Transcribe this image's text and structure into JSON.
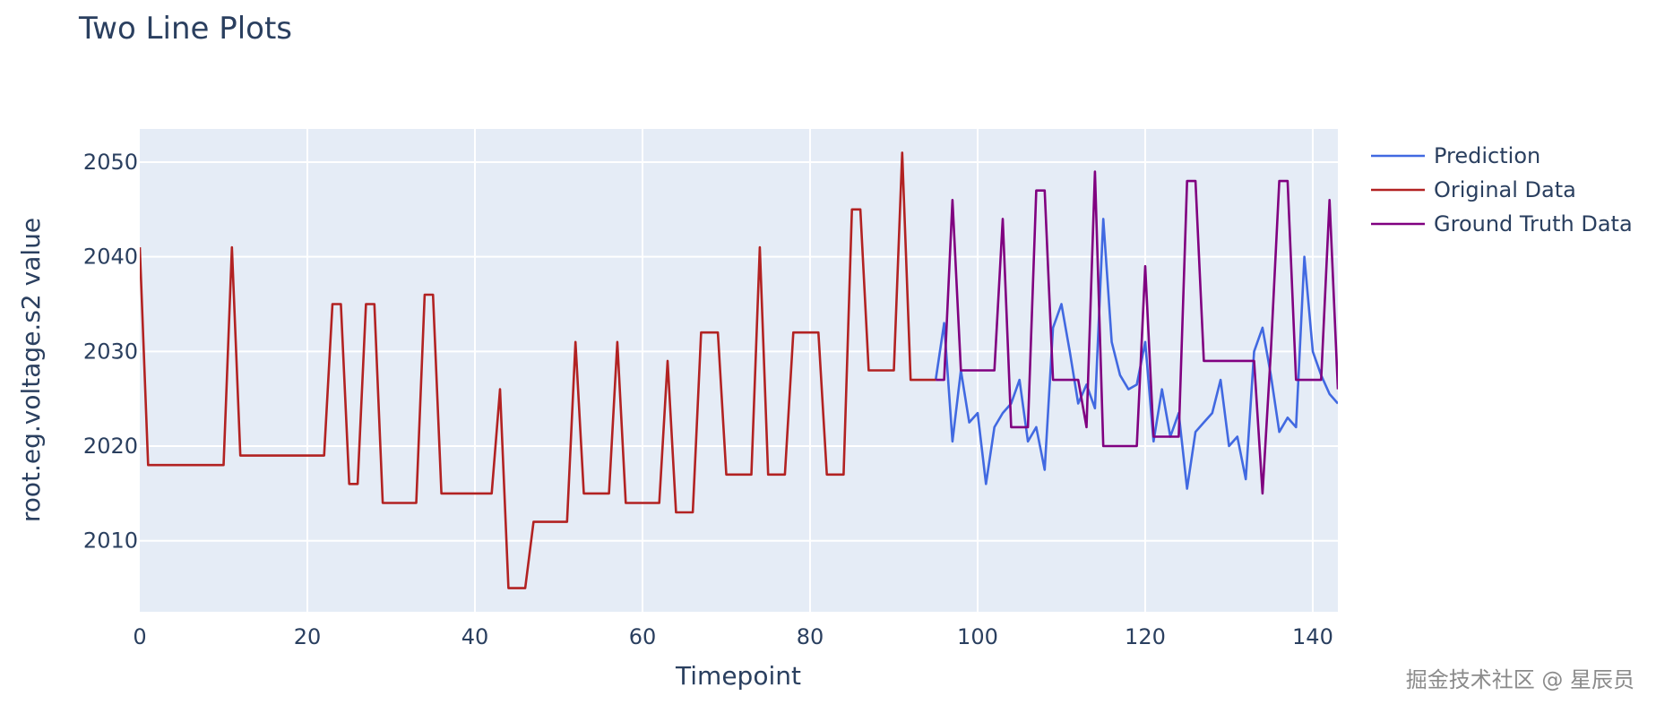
{
  "chart_data": {
    "type": "line",
    "title": "Two Line Plots",
    "xlabel": "Timepoint",
    "ylabel": "root.eg.voltage.s2 value",
    "xlim": [
      0,
      143
    ],
    "ylim": [
      2002.5,
      2053.5
    ],
    "xticks": [
      0,
      20,
      40,
      60,
      80,
      100,
      120,
      140
    ],
    "yticks": [
      2010,
      2020,
      2030,
      2040,
      2050
    ],
    "grid": true,
    "legend_position": "top-right",
    "series": [
      {
        "name": "Prediction",
        "color": "#4169e1",
        "x_start": 95,
        "values": [
          2027,
          2033,
          2020.5,
          2028,
          2022.5,
          2023.5,
          2016,
          2022,
          2023.5,
          2024.5,
          2027,
          2020.5,
          2022,
          2017.5,
          2032.5,
          2035,
          2030,
          2024.5,
          2026.5,
          2024,
          2044,
          2031,
          2027.5,
          2026,
          2026.5,
          2031,
          2020.5,
          2026,
          2021,
          2023.5,
          2015.5,
          2021.5,
          2022.5,
          2023.5,
          2027,
          2020,
          2021,
          2016.5,
          2030,
          2032.5,
          2027.5,
          2021.5,
          2023,
          2022,
          2040,
          2030,
          2027.5,
          2025.5,
          2024.5
        ]
      },
      {
        "name": "Original Data",
        "color": "#b22222",
        "x_start": 0,
        "values": [
          2041,
          2018,
          2018,
          2018,
          2018,
          2018,
          2018,
          2018,
          2018,
          2018,
          2018,
          2041,
          2019,
          2019,
          2019,
          2019,
          2019,
          2019,
          2019,
          2019,
          2019,
          2019,
          2019,
          2035,
          2035,
          2016,
          2016,
          2035,
          2035,
          2014,
          2014,
          2014,
          2014,
          2014,
          2036,
          2036,
          2015,
          2015,
          2015,
          2015,
          2015,
          2015,
          2015,
          2026,
          2005,
          2005,
          2005,
          2012,
          2012,
          2012,
          2012,
          2012,
          2031,
          2015,
          2015,
          2015,
          2015,
          2031,
          2014,
          2014,
          2014,
          2014,
          2014,
          2029,
          2013,
          2013,
          2013,
          2032,
          2032,
          2032,
          2017,
          2017,
          2017,
          2017,
          2041,
          2017,
          2017,
          2017,
          2032,
          2032,
          2032,
          2032,
          2017,
          2017,
          2017,
          2045,
          2045,
          2028,
          2028,
          2028,
          2028,
          2051,
          2027,
          2027,
          2027,
          2027
        ]
      },
      {
        "name": "Ground Truth Data",
        "color": "#800080",
        "x_start": 95,
        "values": [
          2027,
          2027,
          2046,
          2028,
          2028,
          2028,
          2028,
          2028,
          2044,
          2022,
          2022,
          2022,
          2047,
          2047,
          2027,
          2027,
          2027,
          2027,
          2022,
          2049,
          2020,
          2020,
          2020,
          2020,
          2020,
          2039,
          2021,
          2021,
          2021,
          2021,
          2048,
          2048,
          2029,
          2029,
          2029,
          2029,
          2029,
          2029,
          2029,
          2015,
          2030,
          2048,
          2048,
          2027,
          2027,
          2027,
          2027,
          2046,
          2026
        ]
      }
    ]
  },
  "watermark": "掘金技术社区 @ 星辰员"
}
